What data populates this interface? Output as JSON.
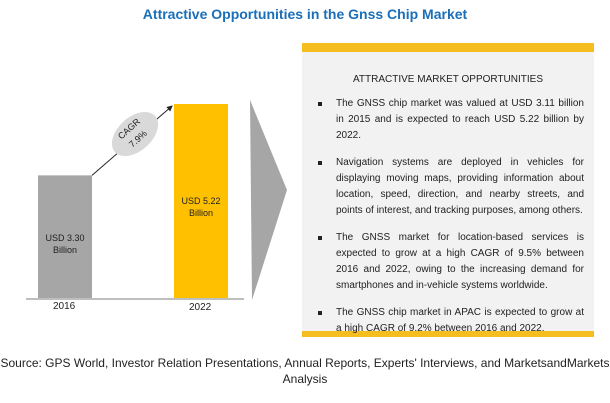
{
  "title": "Attractive Opportunities in the Gnss Chip Market",
  "chart_data": {
    "type": "bar",
    "categories": [
      "2016",
      "2022"
    ],
    "values": [
      3.3,
      5.22
    ],
    "data_labels": [
      "USD 3.30 Billion",
      "USD 5.22 Billion"
    ],
    "colors": [
      "#a6a6a6",
      "#ffc000"
    ],
    "ylabel": "USD Billion",
    "annotation": {
      "line1": "CAGR",
      "line2": "7.9%"
    },
    "ylim": [
      0,
      5.5
    ]
  },
  "panel": {
    "heading": "ATTRACTIVE MARKET OPPORTUNITIES",
    "bullets": [
      "The GNSS chip market was valued at USD 3.11 billion in 2015 and is expected to reach USD 5.22 billion by 2022.",
      "Navigation systems are deployed in vehicles for displaying moving maps, providing information about location, speed, direction, and nearby streets, and points of interest, and tracking purposes, among others.",
      "The GNSS market for location-based services is expected to grow at a high CAGR of 9.5% between 2016 and 2022, owing to the increasing demand for smartphones and in-vehicle systems worldwide.",
      "The GNSS chip market in APAC is expected to grow at a high CAGR of 9.2% between 2016 and 2022."
    ]
  },
  "source": "Source: GPS World, Investor Relation Presentations, Annual Reports, Experts' Interviews, and MarketsandMarkets Analysis"
}
